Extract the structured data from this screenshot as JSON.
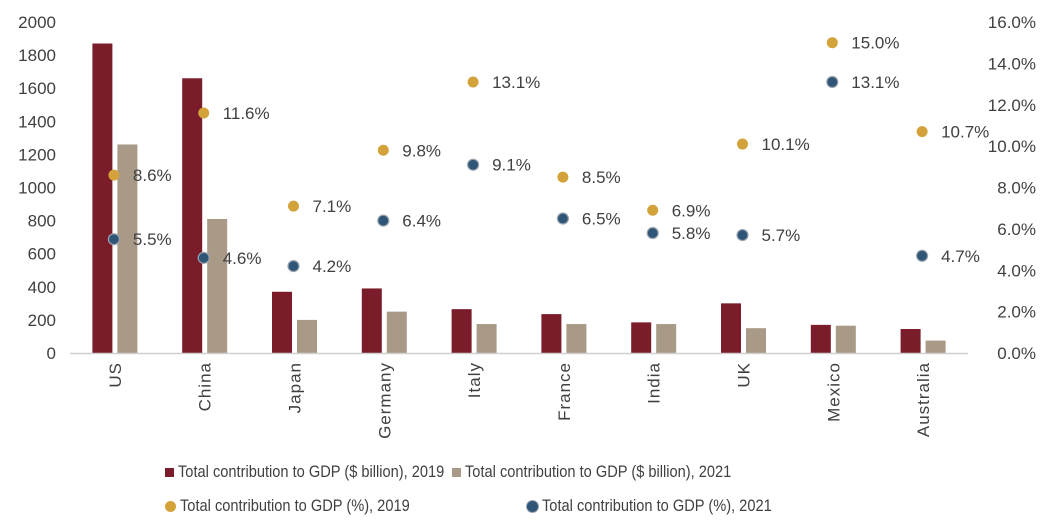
{
  "chart_data": {
    "type": "bar",
    "title": "",
    "xlabel": "",
    "ylabel": "",
    "categories": [
      "US",
      "China",
      "Japan",
      "Germany",
      "Italy",
      "France",
      "India",
      "UK",
      "Mexico",
      "Australia"
    ],
    "ylim": [
      0,
      2000
    ],
    "y_ticks": [
      "0",
      "200",
      "400",
      "600",
      "800",
      "1000",
      "1200",
      "1400",
      "1600",
      "1800",
      "2000"
    ],
    "y2lim": [
      0,
      16
    ],
    "y2_ticks": [
      "0.0%",
      "2.0%",
      "4.0%",
      "6.0%",
      "8.0%",
      "10.0%",
      "12.0%",
      "14.0%",
      "16.0%"
    ],
    "grid": false,
    "legend_position": "bottom",
    "series": [
      {
        "name": "Total contribution to GDP ($ billion), 2019",
        "kind": "bar",
        "axis": "left",
        "color": "#7b1c2a",
        "values": [
          1870,
          1660,
          370,
          390,
          265,
          235,
          185,
          300,
          170,
          145
        ]
      },
      {
        "name": "Total contribution to GDP ($ billion), 2021",
        "kind": "bar",
        "axis": "left",
        "color": "#a89a86",
        "values": [
          1260,
          810,
          200,
          250,
          175,
          175,
          175,
          150,
          165,
          75
        ]
      },
      {
        "name": "Total contribution to GDP (%), 2019",
        "kind": "scatter",
        "axis": "right",
        "color": "#d4a23a",
        "values": [
          8.6,
          11.6,
          7.1,
          9.8,
          13.1,
          8.5,
          6.9,
          10.1,
          15.0,
          10.7
        ],
        "labels": [
          "8.6%",
          "11.6%",
          "7.1%",
          "9.8%",
          "13.1%",
          "8.5%",
          "6.9%",
          "10.1%",
          "15.0%",
          "10.7%"
        ]
      },
      {
        "name": "Total contribution to GDP (%), 2021",
        "kind": "scatter",
        "axis": "right",
        "color": "#2f5577",
        "values": [
          5.5,
          4.6,
          4.2,
          6.4,
          9.1,
          6.5,
          5.8,
          5.7,
          13.1,
          4.7
        ],
        "labels": [
          "5.5%",
          "4.6%",
          "4.2%",
          "6.4%",
          "9.1%",
          "6.5%",
          "5.8%",
          "5.7%",
          "13.1%",
          "4.7%"
        ]
      }
    ]
  }
}
